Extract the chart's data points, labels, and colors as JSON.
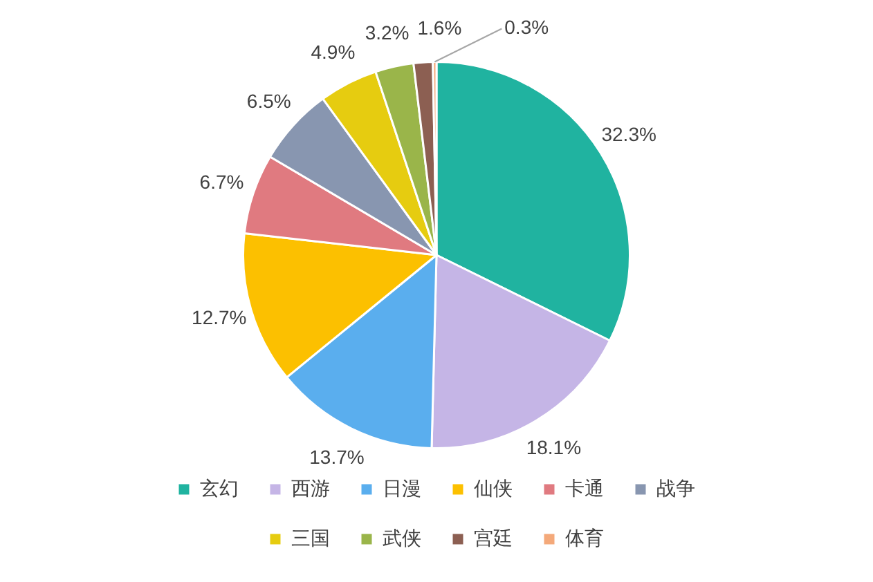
{
  "chart_data": {
    "type": "pie",
    "categories": [
      "玄幻",
      "西游",
      "日漫",
      "仙侠",
      "卡通",
      "战争",
      "三国",
      "武侠",
      "宫廷",
      "体育"
    ],
    "values": [
      32.3,
      18.1,
      13.7,
      12.7,
      6.7,
      6.5,
      4.9,
      3.2,
      1.6,
      0.3
    ],
    "colors": [
      "#20b3a0",
      "#c5b5e6",
      "#5aaeee",
      "#fcc000",
      "#e07a80",
      "#8896b0",
      "#e6cc10",
      "#9ab54a",
      "#8c5f52",
      "#f4a97a"
    ],
    "value_labels": [
      "32.3%",
      "18.1%",
      "13.7%",
      "12.7%",
      "6.7%",
      "6.5%",
      "4.9%",
      "3.2%",
      "1.6%",
      "0.3%"
    ],
    "legend": "bottom"
  }
}
